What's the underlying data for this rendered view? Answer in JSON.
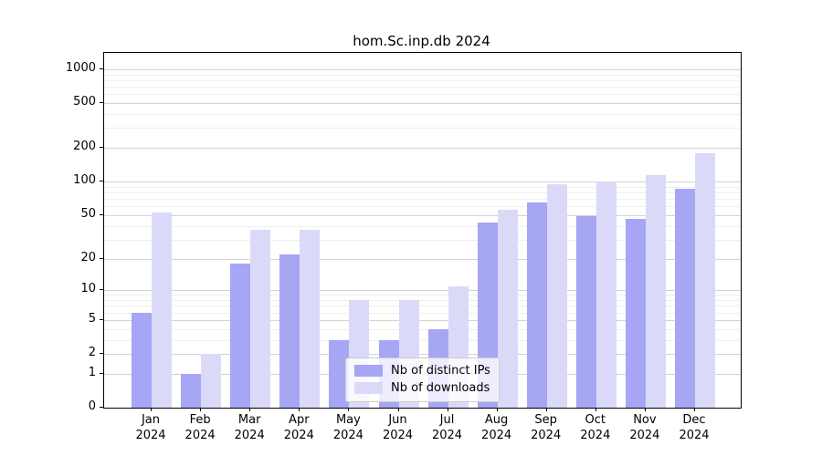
{
  "chart_data": {
    "type": "bar",
    "title": "hom.Sc.inp.db 2024",
    "categories": [
      "Jan",
      "Feb",
      "Mar",
      "Apr",
      "May",
      "Jun",
      "Jul",
      "Aug",
      "Sep",
      "Oct",
      "Nov",
      "Dec"
    ],
    "x_tick_year": "2024",
    "series": [
      {
        "name": "Nb of distinct IPs",
        "color": "#a6a6f5",
        "values": [
          6,
          1,
          18,
          22,
          3,
          3,
          4,
          43,
          65,
          49,
          46,
          86
        ]
      },
      {
        "name": "Nb of downloads",
        "color": "#dadaf8",
        "values": [
          53,
          2,
          37,
          37,
          8,
          8,
          11,
          56,
          94,
          100,
          115,
          180
        ]
      }
    ],
    "xlabel": "",
    "ylabel": "",
    "yscale": "log1p",
    "yticks": [
      0,
      1,
      2,
      5,
      10,
      20,
      50,
      100,
      200,
      500,
      1000
    ],
    "yticks_minor": [
      3,
      4,
      6,
      7,
      8,
      9,
      30,
      40,
      60,
      70,
      80,
      90,
      300,
      400,
      600,
      700,
      800,
      900
    ],
    "ylim": [
      0,
      1395
    ],
    "grid": true,
    "legend_position": "lower center"
  }
}
